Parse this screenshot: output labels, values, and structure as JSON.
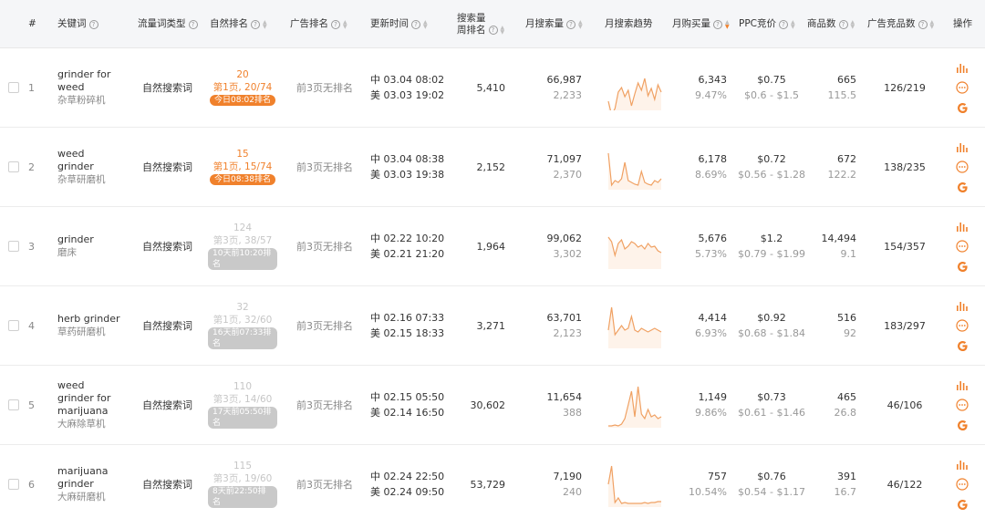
{
  "header": {
    "index": "#",
    "keyword": "关键词",
    "traffic_type": "流量词类型",
    "natural_rank": "自然排名",
    "ad_rank": "广告排名",
    "update_time": "更新时间",
    "search_rank_line1": "搜索量",
    "search_rank_line2": "周排名",
    "monthly_search": "月搜索量",
    "monthly_trend": "月搜索趋势",
    "monthly_buy": "月购买量",
    "ppc": "PPC竞价",
    "products": "商品数",
    "ad_products": "广告竞品数",
    "actions": "操作"
  },
  "colors": {
    "accent": "#f0812c",
    "muted": "#999999",
    "header_bg": "#f5f6f8"
  },
  "rows": [
    {
      "index": "1",
      "keyword": "grinder for weed",
      "keyword_cn": "杂草粉碎机",
      "traffic_type": "自然搜索词",
      "rank_main": "20",
      "rank_page": "第1页, 20/74",
      "rank_tag": "今日08:02排名",
      "rank_style": "orange",
      "ad_rank": "前3页无排名",
      "time_cn": "中 03.04 08:02",
      "time_us": "美 03.03 19:02",
      "search_rank": "5,410",
      "monthly_search": "66,987",
      "monthly_search_sub": "2,233",
      "trend": [
        40,
        55,
        48,
        30,
        25,
        35,
        28,
        45,
        32,
        20,
        28,
        15,
        34,
        26,
        38,
        22,
        30
      ],
      "monthly_buy": "6,343",
      "buy_rate": "9.47%",
      "ppc": "$0.75",
      "ppc_range": "$0.6 - $1.5",
      "products": "665",
      "products_sub": "115.5",
      "ad_products": "126/219"
    },
    {
      "index": "2",
      "keyword": "weed grinder",
      "keyword_cn": "杂草研磨机",
      "traffic_type": "自然搜索词",
      "rank_main": "15",
      "rank_page": "第1页, 15/74",
      "rank_tag": "今日08:38排名",
      "rank_style": "orange",
      "ad_rank": "前3页无排名",
      "time_cn": "中 03.04 08:38",
      "time_us": "美 03.03 19:38",
      "search_rank": "2,152",
      "monthly_search": "71,097",
      "monthly_search_sub": "2,370",
      "trend": [
        10,
        45,
        40,
        42,
        38,
        20,
        40,
        42,
        44,
        45,
        30,
        42,
        44,
        45,
        40,
        42,
        38
      ],
      "monthly_buy": "6,178",
      "buy_rate": "8.69%",
      "ppc": "$0.72",
      "ppc_range": "$0.56 - $1.28",
      "products": "672",
      "products_sub": "122.2",
      "ad_products": "138/235"
    },
    {
      "index": "3",
      "keyword": "grinder",
      "keyword_cn": "磨床",
      "traffic_type": "自然搜索词",
      "rank_main": "124",
      "rank_page": "第3页, 38/57",
      "rank_tag": "10天前10:20排名",
      "rank_style": "gray",
      "ad_rank": "前3页无排名",
      "time_cn": "中 02.22 10:20",
      "time_us": "美 02.21 21:20",
      "search_rank": "1,964",
      "monthly_search": "99,062",
      "monthly_search_sub": "3,302",
      "trend": [
        15,
        20,
        35,
        22,
        18,
        28,
        25,
        20,
        22,
        26,
        24,
        28,
        22,
        26,
        25,
        30,
        32
      ],
      "monthly_buy": "5,676",
      "buy_rate": "5.73%",
      "ppc": "$1.2",
      "ppc_range": "$0.79 - $1.99",
      "products": "14,494",
      "products_sub": "9.1",
      "ad_products": "154/357"
    },
    {
      "index": "4",
      "keyword": "herb grinder",
      "keyword_cn": "草药研磨机",
      "traffic_type": "自然搜索词",
      "rank_main": "32",
      "rank_page": "第1页, 32/60",
      "rank_tag": "16天前07:33排名",
      "rank_style": "gray",
      "ad_rank": "前3页无排名",
      "time_cn": "中 02.16 07:33",
      "time_us": "美 02.15 18:33",
      "search_rank": "3,271",
      "monthly_search": "63,701",
      "monthly_search_sub": "2,123",
      "trend": [
        30,
        5,
        35,
        30,
        25,
        30,
        28,
        15,
        30,
        32,
        28,
        30,
        32,
        30,
        28,
        30,
        32
      ],
      "monthly_buy": "4,414",
      "buy_rate": "6.93%",
      "ppc": "$0.92",
      "ppc_range": "$0.68 - $1.84",
      "products": "516",
      "products_sub": "92",
      "ad_products": "183/297"
    },
    {
      "index": "5",
      "keyword": "weed grinder for marijuana",
      "keyword_cn": "大麻除草机",
      "traffic_type": "自然搜索词",
      "rank_main": "110",
      "rank_page": "第3页, 14/60",
      "rank_tag": "17天前05:50排名",
      "rank_style": "gray",
      "ad_rank": "前3页无排名",
      "time_cn": "中 02.15 05:50",
      "time_us": "美 02.14 16:50",
      "search_rank": "30,602",
      "monthly_search": "11,654",
      "monthly_search_sub": "388",
      "trend": [
        48,
        48,
        47,
        48,
        46,
        40,
        25,
        10,
        38,
        5,
        35,
        40,
        30,
        38,
        36,
        40,
        38
      ],
      "monthly_buy": "1,149",
      "buy_rate": "9.86%",
      "ppc": "$0.73",
      "ppc_range": "$0.61 - $1.46",
      "products": "465",
      "products_sub": "26.8",
      "ad_products": "46/106"
    },
    {
      "index": "6",
      "keyword": "marijuana grinder",
      "keyword_cn": "大麻研磨机",
      "traffic_type": "自然搜索词",
      "rank_main": "115",
      "rank_page": "第3页, 19/60",
      "rank_tag": "8天前22:50排名",
      "rank_style": "gray",
      "ad_rank": "前3页无排名",
      "time_cn": "中 02.24 22:50",
      "time_us": "美 02.24 09:50",
      "search_rank": "53,729",
      "monthly_search": "7,190",
      "monthly_search_sub": "240",
      "trend": [
        25,
        5,
        45,
        40,
        46,
        45,
        46,
        46,
        46,
        46,
        46,
        45,
        46,
        45,
        45,
        44,
        44
      ],
      "monthly_buy": "757",
      "buy_rate": "10.54%",
      "ppc": "$0.76",
      "ppc_range": "$0.54 - $1.17",
      "products": "391",
      "products_sub": "16.7",
      "ad_products": "46/122"
    }
  ]
}
